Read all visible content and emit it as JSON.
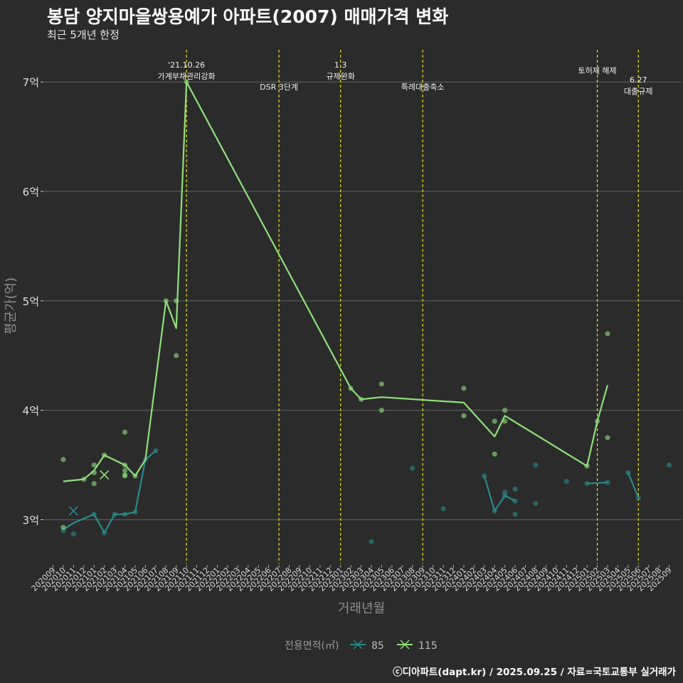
{
  "title": "봉담 양지마을쌍용예가 아파트(2007) 매매가격 변화",
  "subtitle": "최근 5개년 한정",
  "caption": "ⓒ디아파트(dapt.kr) / 2025.09.25 / 자료=국토교통부 실거래가",
  "chart_data": {
    "type": "line",
    "xlabel": "거래년월",
    "ylabel": "평균가(억)",
    "x_categories": [
      "202009",
      "202010",
      "202011",
      "202012",
      "202101",
      "202102",
      "202103",
      "202104",
      "202105",
      "202106",
      "202107",
      "202108",
      "202109",
      "202110",
      "202111",
      "202112",
      "202201",
      "202202",
      "202203",
      "202204",
      "202205",
      "202206",
      "202207",
      "202208",
      "202209",
      "202210",
      "202211",
      "202212",
      "202301",
      "202302",
      "202303",
      "202304",
      "202305",
      "202306",
      "202307",
      "202308",
      "202309",
      "202310",
      "202311",
      "202312",
      "202401",
      "202402",
      "202403",
      "202404",
      "202405",
      "202406",
      "202407",
      "202408",
      "202409",
      "202410",
      "202411",
      "202412",
      "202501",
      "202502",
      "202503",
      "202504",
      "202505",
      "202506",
      "202507",
      "202508",
      "202509"
    ],
    "y_ticks": [
      {
        "value": 3,
        "label": "3억"
      },
      {
        "value": 4,
        "label": "4억"
      },
      {
        "value": 5,
        "label": "5억"
      },
      {
        "value": 6,
        "label": "6억"
      },
      {
        "value": 7,
        "label": "7억"
      }
    ],
    "ylim": [
      2.6,
      7.32
    ],
    "legend": {
      "title": "전용면적(㎡)",
      "position": "bottom"
    },
    "colors": {
      "85": "#2a8a8a",
      "115": "#90e07c",
      "event": "#e0e020"
    },
    "series": [
      {
        "name": "85",
        "lines": [
          [
            [
              "202010",
              2.91
            ],
            [
              "202011",
              2.97
            ],
            [
              "202101",
              3.05
            ],
            [
              "202102",
              2.88
            ],
            [
              "202103",
              3.05
            ],
            [
              "202104",
              3.05
            ],
            [
              "202105",
              3.07
            ],
            [
              "202106",
              3.55
            ],
            [
              "202107",
              3.63
            ]
          ],
          [
            [
              "202403",
              3.4
            ],
            [
              "202404",
              3.08
            ],
            [
              "202405",
              3.22
            ],
            [
              "202406",
              3.17
            ]
          ],
          [
            [
              "202501",
              3.33
            ],
            [
              "202503",
              3.34
            ]
          ],
          [
            [
              "202505",
              3.43
            ],
            [
              "202506",
              3.2
            ]
          ]
        ],
        "points": [
          [
            "202010",
            2.9
          ],
          [
            "202011",
            2.87
          ],
          [
            "202101",
            3.05
          ],
          [
            "202102",
            2.88
          ],
          [
            "202103",
            3.05
          ],
          [
            "202104",
            3.05
          ],
          [
            "202105",
            3.07
          ],
          [
            "202106",
            3.55
          ],
          [
            "202107",
            3.63
          ],
          [
            "202304",
            2.8
          ],
          [
            "202308",
            3.47
          ],
          [
            "202311",
            3.1
          ],
          [
            "202403",
            3.4
          ],
          [
            "202404",
            3.08
          ],
          [
            "202405",
            3.22
          ],
          [
            "202405",
            3.25
          ],
          [
            "202406",
            3.05
          ],
          [
            "202406",
            3.28
          ],
          [
            "202406",
            3.17
          ],
          [
            "202408",
            3.5
          ],
          [
            "202408",
            3.15
          ],
          [
            "202411",
            3.35
          ],
          [
            "202501",
            3.33
          ],
          [
            "202503",
            3.34
          ],
          [
            "202505",
            3.43
          ],
          [
            "202506",
            3.2
          ],
          [
            "202509",
            3.5
          ]
        ],
        "crosses": [
          [
            "202011",
            3.08
          ]
        ]
      },
      {
        "name": "115",
        "lines": [
          [
            [
              "202010",
              3.35
            ],
            [
              "202012",
              3.37
            ],
            [
              "202101",
              3.45
            ],
            [
              "202102",
              3.59
            ],
            [
              "202104",
              3.5
            ],
            [
              "202105",
              3.4
            ],
            [
              "202106",
              3.55
            ],
            [
              "202108",
              5.0
            ],
            [
              "202109",
              4.75
            ],
            [
              "202110",
              7.0
            ],
            [
              "202302",
              4.2
            ],
            [
              "202303",
              4.1
            ],
            [
              "202305",
              4.12
            ],
            [
              "202401",
              4.07
            ],
            [
              "202404",
              3.76
            ],
            [
              "202405",
              3.95
            ],
            [
              "202501",
              3.49
            ],
            [
              "202502",
              3.9
            ],
            [
              "202503",
              4.23
            ]
          ]
        ],
        "points": [
          [
            "202010",
            3.55
          ],
          [
            "202010",
            2.93
          ],
          [
            "202012",
            3.37
          ],
          [
            "202101",
            3.5
          ],
          [
            "202101",
            3.43
          ],
          [
            "202101",
            3.33
          ],
          [
            "202102",
            3.59
          ],
          [
            "202104",
            3.8
          ],
          [
            "202104",
            3.5
          ],
          [
            "202104",
            3.45
          ],
          [
            "202104",
            3.4
          ],
          [
            "202104",
            3.41
          ],
          [
            "202105",
            3.4
          ],
          [
            "202108",
            5.0
          ],
          [
            "202109",
            5.0
          ],
          [
            "202109",
            4.5
          ],
          [
            "202110",
            7.0
          ],
          [
            "202302",
            4.2
          ],
          [
            "202303",
            4.1
          ],
          [
            "202305",
            4.24
          ],
          [
            "202305",
            4.0
          ],
          [
            "202401",
            4.2
          ],
          [
            "202401",
            3.95
          ],
          [
            "202404",
            3.9
          ],
          [
            "202404",
            3.6
          ],
          [
            "202405",
            4.0
          ],
          [
            "202405",
            3.9
          ],
          [
            "202501",
            3.49
          ],
          [
            "202502",
            3.9
          ],
          [
            "202503",
            4.7
          ],
          [
            "202503",
            3.75
          ]
        ],
        "crosses": [
          [
            "202102",
            3.41
          ]
        ]
      }
    ],
    "events": [
      {
        "x": "202110",
        "lines": [
          "'21.10.26",
          "가계부채관리강화"
        ],
        "pos": "high"
      },
      {
        "x": "202207",
        "lines": [
          "DSR 3단계"
        ],
        "pos": "low"
      },
      {
        "x": "202301",
        "lines": [
          "1.3",
          "규제완화"
        ],
        "pos": "high"
      },
      {
        "x": "202309",
        "lines": [
          "특례대출축소"
        ],
        "pos": "low"
      },
      {
        "x": "202502",
        "lines": [
          "토허제 해제"
        ],
        "pos": "mid"
      },
      {
        "x": "202506",
        "lines": [
          "6.27",
          "대출규제"
        ],
        "pos": "low2"
      }
    ]
  }
}
